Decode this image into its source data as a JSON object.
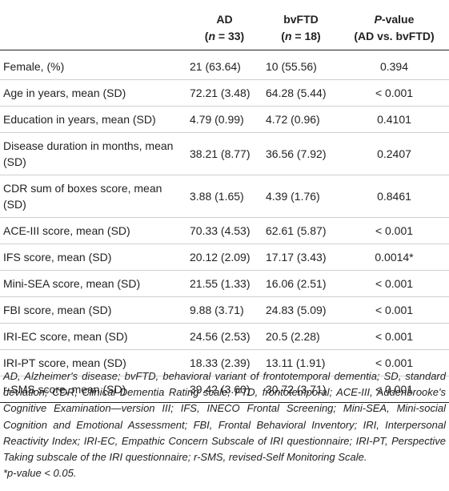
{
  "table": {
    "headers": {
      "ad_name": "AD",
      "ad_n": "(n = 33)",
      "ad_n_pre": "(",
      "ad_n_var": "n",
      "ad_n_post": " = 33)",
      "ftd_name": "bvFTD",
      "ftd_n_pre": "(",
      "ftd_n_var": "n",
      "ftd_n_post": " = 18)",
      "p_var": "P",
      "p_rest": "-value",
      "p_sub": "(AD vs. bvFTD)"
    },
    "rows": [
      {
        "label": "Female, (%)",
        "ad": "21 (63.64)",
        "ftd": "10 (55.56)",
        "p": "0.394"
      },
      {
        "label": "Age in years, mean (SD)",
        "ad": "72.21 (3.48)",
        "ftd": "64.28 (5.44)",
        "p": "< 0.001"
      },
      {
        "label": "Education in years, mean (SD)",
        "ad": "4.79 (0.99)",
        "ftd": "4.72 (0.96)",
        "p": "0.4101"
      },
      {
        "label": "Disease duration in months, mean (SD)",
        "ad": "38.21 (8.77)",
        "ftd": "36.56 (7.92)",
        "p": "0.2407"
      },
      {
        "label": "CDR sum of boxes score, mean (SD)",
        "ad": "3.88 (1.65)",
        "ftd": "4.39 (1.76)",
        "p": "0.8461"
      },
      {
        "label": "ACE-III score, mean (SD)",
        "ad": "70.33 (4.53)",
        "ftd": "62.61 (5.87)",
        "p": "< 0.001"
      },
      {
        "label": "IFS score, mean (SD)",
        "ad": "20.12 (2.09)",
        "ftd": "17.17 (3.43)",
        "p": "0.0014*"
      },
      {
        "label": "Mini-SEA score, mean (SD)",
        "ad": "21.55 (1.33)",
        "ftd": "16.06 (2.51)",
        "p": "< 0.001"
      },
      {
        "label": "FBI score, mean (SD)",
        "ad": "9.88 (3.71)",
        "ftd": "24.83 (5.09)",
        "p": "< 0.001"
      },
      {
        "label": "IRI-EC score, mean (SD)",
        "ad": "24.56 (2.53)",
        "ftd": "20.5 (2.28)",
        "p": "< 0.001"
      },
      {
        "label": "IRI-PT score, mean (SD)",
        "ad": "18.33 (2.39)",
        "ftd": "13.11 (1.91)",
        "p": "< 0.001"
      },
      {
        "label": "r-SMS score, mean (SD)",
        "ad": "39.42 (3.60)",
        "ftd": "30.72 (3.71)",
        "p": "< 0.001"
      }
    ]
  },
  "footnote": {
    "abbreviations": "AD, Alzheimer's disease; bvFTD, behavioral variant of frontotemporal dementia; SD, standard deviation; CDR, Clinical Dementia Rating scale; FTD, frontotemporal; ACE-III, Addenbrooke's Cognitive Examination—version III; IFS, INECO Frontal Screening; Mini-SEA, Mini-social Cognition and Emotional Assessment; FBI, Frontal Behavioral Inventory; IRI, Interpersonal Reactivity Index; IRI-EC, Empathic Concern Subscale of IRI questionnaire; IRI-PT, Perspective Taking subscale of the IRI questionnaire; r-SMS, revised-Self Monitoring Scale.",
    "significance": "*p-value < 0.05."
  }
}
